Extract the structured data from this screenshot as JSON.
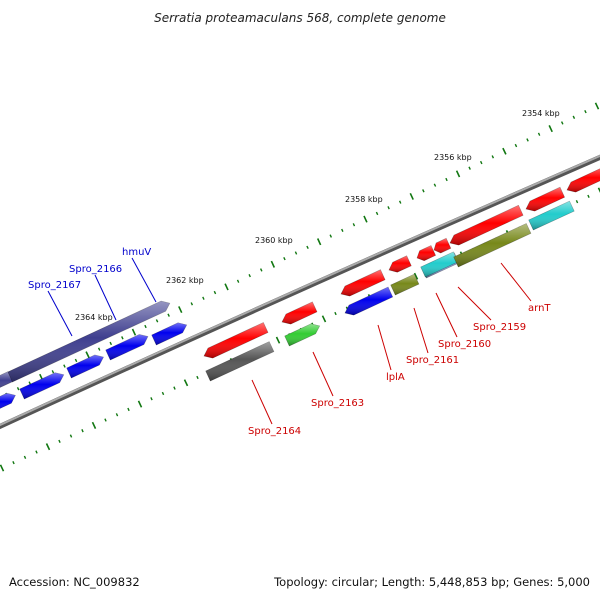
{
  "title": "Serratia proteamaculans 568, complete genome",
  "accession": "Accession: NC_009832",
  "summary": "Topology: circular; Length: 5,448,853 bp; Genes: 5,000",
  "colors": {
    "backbone": "#888888",
    "tick": "#117711",
    "forward_label": "#0000cc",
    "reverse_label": "#cc0000",
    "red": "#ff0000",
    "blue": "#0000ee",
    "navy": "#3f3f8f",
    "gray": "#555555",
    "green": "#33cc33",
    "olive": "#77881a",
    "cyan": "#22cccc",
    "lightblue": "#8899cc"
  },
  "kbp_labels": [
    "2354 kbp",
    "2356 kbp",
    "2358 kbp",
    "2360 kbp",
    "2362 kbp",
    "2364 kbp"
  ],
  "forward_labels": [
    "hmuV",
    "Spro_2166",
    "Spro_2167"
  ],
  "reverse_labels": [
    "arnT",
    "Spro_2159",
    "Spro_2160",
    "Spro_2161",
    "lplA",
    "Spro_2163",
    "Spro_2164"
  ]
}
